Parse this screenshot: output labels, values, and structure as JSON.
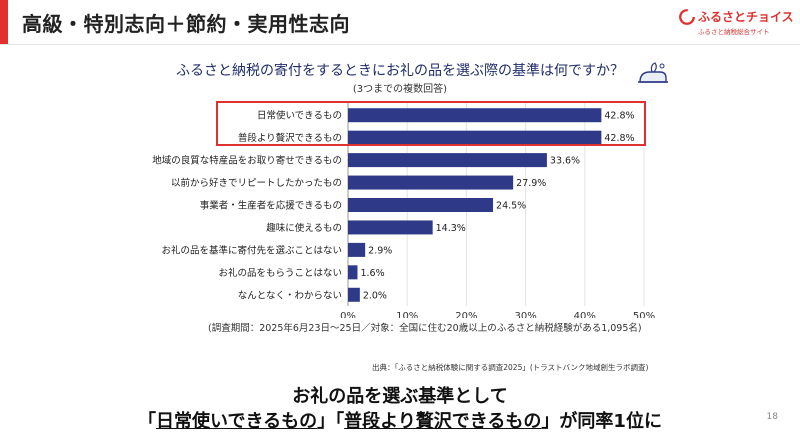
{
  "slide": {
    "title": "高級・特別志向＋節約・実用性志向",
    "page_number": "18",
    "accent_color": "#e0302f"
  },
  "logo": {
    "name": "ふるさとチョイス",
    "subtitle": "ふるさと納税総合サイト",
    "color": "#e0302f"
  },
  "question": {
    "text": "ふるさと納税の寄付をするときにお礼の品を選ぶ際の基準は何ですか？",
    "note": "(3つまでの複数回答)"
  },
  "chart_data": {
    "type": "bar",
    "orientation": "horizontal",
    "categories": [
      "日常使いできるもの",
      "普段より贅沢できるもの",
      "地域の良質な特産品をお取り寄せできるもの",
      "以前から好きでリピートしたかったもの",
      "事業者・生産者を応援できるもの",
      "趣味に使えるもの",
      "お礼の品を基準に寄付先を選ぶことはない",
      "お礼の品をもらうことはない",
      "なんとなく・わからない"
    ],
    "values": [
      42.8,
      42.8,
      33.6,
      27.9,
      24.5,
      14.3,
      2.9,
      1.6,
      2.0
    ],
    "value_labels": [
      "42.8%",
      "42.8%",
      "33.6%",
      "27.9%",
      "24.5%",
      "14.3%",
      "2.9%",
      "1.6%",
      "2.0%"
    ],
    "xlim": [
      0,
      50
    ],
    "xticks": [
      "0%",
      "10%",
      "20%",
      "30%",
      "40%",
      "50%"
    ],
    "grid": true,
    "bar_color": "#2e3a87",
    "highlighted_categories": [
      "日常使いできるもの",
      "普段より贅沢できるもの"
    ],
    "highlight_color": "#e03030"
  },
  "survey_note": "(調査期間：2025年6月23日〜25日／対象：全国に住む20歳以上のふるさと納税経験がある1,095名)",
  "source": "出典：「ふるさと納税体験に関する調査2025」(トラストバンク地域創生ラボ調査)",
  "conclusion": {
    "line1": "お礼の品を選ぶ基準として",
    "bracket_open_1": "「",
    "item1": "日常使いできるもの",
    "bracket_mid": "」「",
    "item2": "普段より贅沢できるもの",
    "tail": "」が同率1位に"
  }
}
